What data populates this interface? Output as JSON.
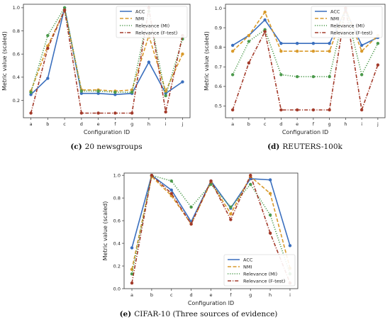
{
  "chart_data": [
    {
      "type": "line",
      "panel": "c",
      "caption_letter": "(c)",
      "caption_text": "20 newsgroups",
      "xlabel": "Configuration ID",
      "ylabel": "Metric value (scaled)",
      "categories": [
        "a",
        "b",
        "c",
        "d",
        "e",
        "f",
        "g",
        "h",
        "i",
        "j"
      ],
      "ylim": [
        0.05,
        1.03
      ],
      "yticks": [
        "0.2",
        "0.4",
        "0.6",
        "0.8",
        "1.0"
      ],
      "legend_position": "top-right",
      "series": [
        {
          "name": "ACC",
          "color": "#3a6fbe",
          "dash": "solid",
          "values": [
            0.25,
            0.39,
            1.0,
            0.26,
            0.26,
            0.25,
            0.26,
            0.53,
            0.26,
            0.36
          ]
        },
        {
          "name": "NMI",
          "color": "#d99a2b",
          "dash": "dashed",
          "values": [
            0.28,
            0.67,
            0.98,
            0.29,
            0.29,
            0.28,
            0.29,
            0.76,
            0.28,
            0.6
          ]
        },
        {
          "name": "Relevance (MI)",
          "color": "#4c9a4c",
          "dash": "dotted",
          "values": [
            0.27,
            0.76,
            1.0,
            0.28,
            0.28,
            0.27,
            0.27,
            0.97,
            0.24,
            0.73
          ]
        },
        {
          "name": "Relevance (F-test)",
          "color": "#a33a2a",
          "dash": "dashdot",
          "values": [
            0.09,
            0.65,
            0.98,
            0.09,
            0.09,
            0.09,
            0.09,
            1.0,
            0.1,
            0.76
          ]
        }
      ]
    },
    {
      "type": "line",
      "panel": "d",
      "caption_letter": "(d)",
      "caption_text": "REUTERS-100k",
      "xlabel": "Configuration ID",
      "ylabel": "Metric value (scaled)",
      "categories": [
        "a",
        "b",
        "c",
        "d",
        "e",
        "f",
        "g",
        "h",
        "i",
        "j"
      ],
      "ylim": [
        0.44,
        1.02
      ],
      "yticks": [
        "0.5",
        "0.6",
        "0.7",
        "0.8",
        "0.9",
        "1.0"
      ],
      "legend_position": "top-right",
      "series": [
        {
          "name": "ACC",
          "color": "#3a6fbe",
          "dash": "solid",
          "values": [
            0.81,
            0.86,
            0.94,
            0.82,
            0.82,
            0.82,
            0.82,
            0.99,
            0.81,
            0.85
          ]
        },
        {
          "name": "NMI",
          "color": "#d99a2b",
          "dash": "dashed",
          "values": [
            0.78,
            0.86,
            0.98,
            0.78,
            0.78,
            0.78,
            0.78,
            1.0,
            0.78,
            0.86
          ]
        },
        {
          "name": "Relevance (MI)",
          "color": "#4c9a4c",
          "dash": "dotted",
          "values": [
            0.66,
            0.83,
            0.89,
            0.66,
            0.65,
            0.65,
            0.65,
            1.0,
            0.66,
            0.82
          ]
        },
        {
          "name": "Relevance (F-test)",
          "color": "#a33a2a",
          "dash": "dashdot",
          "values": [
            0.48,
            0.72,
            0.88,
            0.48,
            0.48,
            0.48,
            0.48,
            1.0,
            0.48,
            0.71
          ]
        }
      ]
    },
    {
      "type": "line",
      "panel": "e",
      "caption_letter": "(e)",
      "caption_text": "CIFAR-10 (Three sources of evidence)",
      "xlabel": "Configuration ID",
      "ylabel": "Metric value (scaled)",
      "categories": [
        "a",
        "b",
        "c",
        "d",
        "e",
        "f",
        "g",
        "h",
        "i"
      ],
      "ylim": [
        0.0,
        1.02
      ],
      "yticks": [
        "0.0",
        "0.2",
        "0.4",
        "0.6",
        "0.8",
        "1.0"
      ],
      "legend_position": "bottom-right",
      "series": [
        {
          "name": "ACC",
          "color": "#3a6fbe",
          "dash": "solid",
          "values": [
            0.36,
            1.0,
            0.87,
            0.59,
            0.95,
            0.71,
            0.97,
            0.96,
            0.38
          ]
        },
        {
          "name": "NMI",
          "color": "#d99a2b",
          "dash": "dashed",
          "values": [
            0.17,
            0.99,
            0.82,
            0.57,
            0.94,
            0.66,
            0.99,
            0.84,
            0.18
          ]
        },
        {
          "name": "Relevance (MI)",
          "color": "#4c9a4c",
          "dash": "dotted",
          "values": [
            0.13,
            1.0,
            0.95,
            0.72,
            0.92,
            0.72,
            0.92,
            0.65,
            0.13
          ]
        },
        {
          "name": "Relevance (F-test)",
          "color": "#a33a2a",
          "dash": "dashdot",
          "values": [
            0.05,
            1.0,
            0.84,
            0.57,
            0.95,
            0.61,
            1.0,
            0.49,
            0.05
          ]
        }
      ]
    }
  ]
}
